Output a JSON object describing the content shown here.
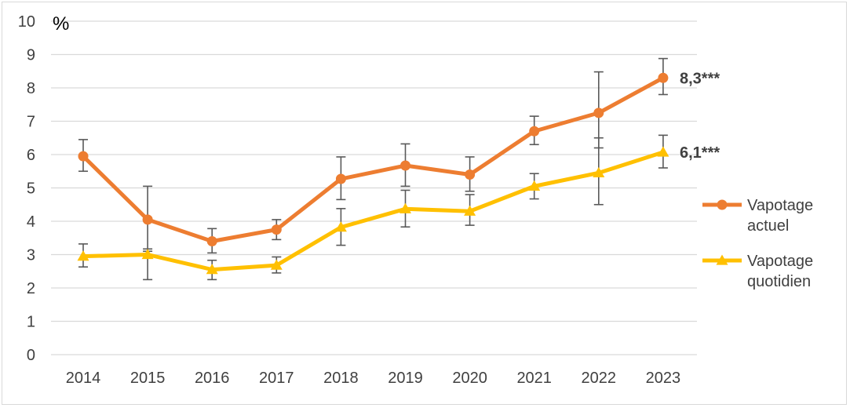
{
  "chart_data": {
    "type": "line",
    "y_unit_label": "%",
    "ylim": [
      0,
      10
    ],
    "y_ticks": [
      "0",
      "1",
      "2",
      "3",
      "4",
      "5",
      "6",
      "7",
      "8",
      "9",
      "10"
    ],
    "x": [
      "2014",
      "2015",
      "2016",
      "2017",
      "2018",
      "2019",
      "2020",
      "2021",
      "2022",
      "2023"
    ],
    "grid": true,
    "legend_position": "right",
    "series": [
      {
        "name": "Vapotage actuel",
        "legend_lines": [
          "Vapotage",
          "actuel"
        ],
        "color": "#ED7D31",
        "marker": "circle",
        "values": [
          5.95,
          4.05,
          3.4,
          3.75,
          5.27,
          5.67,
          5.4,
          6.7,
          7.25,
          8.3
        ],
        "error_low": [
          5.5,
          3.1,
          3.05,
          3.45,
          4.65,
          5.05,
          4.9,
          6.3,
          6.2,
          7.8
        ],
        "error_high": [
          6.45,
          5.05,
          3.78,
          4.05,
          5.93,
          6.32,
          5.93,
          7.15,
          8.48,
          8.88
        ],
        "end_label": "8,3***"
      },
      {
        "name": "Vapotage quotidien",
        "legend_lines": [
          "Vapotage",
          "quotidien"
        ],
        "color": "#FFC000",
        "marker": "triangle",
        "values": [
          2.95,
          3.0,
          2.55,
          2.68,
          3.82,
          4.37,
          4.3,
          5.05,
          5.45,
          6.07
        ],
        "error_low": [
          2.63,
          2.25,
          2.25,
          2.45,
          3.28,
          3.83,
          3.88,
          4.67,
          4.5,
          5.6
        ],
        "error_high": [
          3.32,
          3.17,
          2.83,
          2.93,
          4.38,
          4.93,
          4.8,
          5.43,
          6.5,
          6.58
        ],
        "end_label": "6,1***"
      }
    ]
  }
}
